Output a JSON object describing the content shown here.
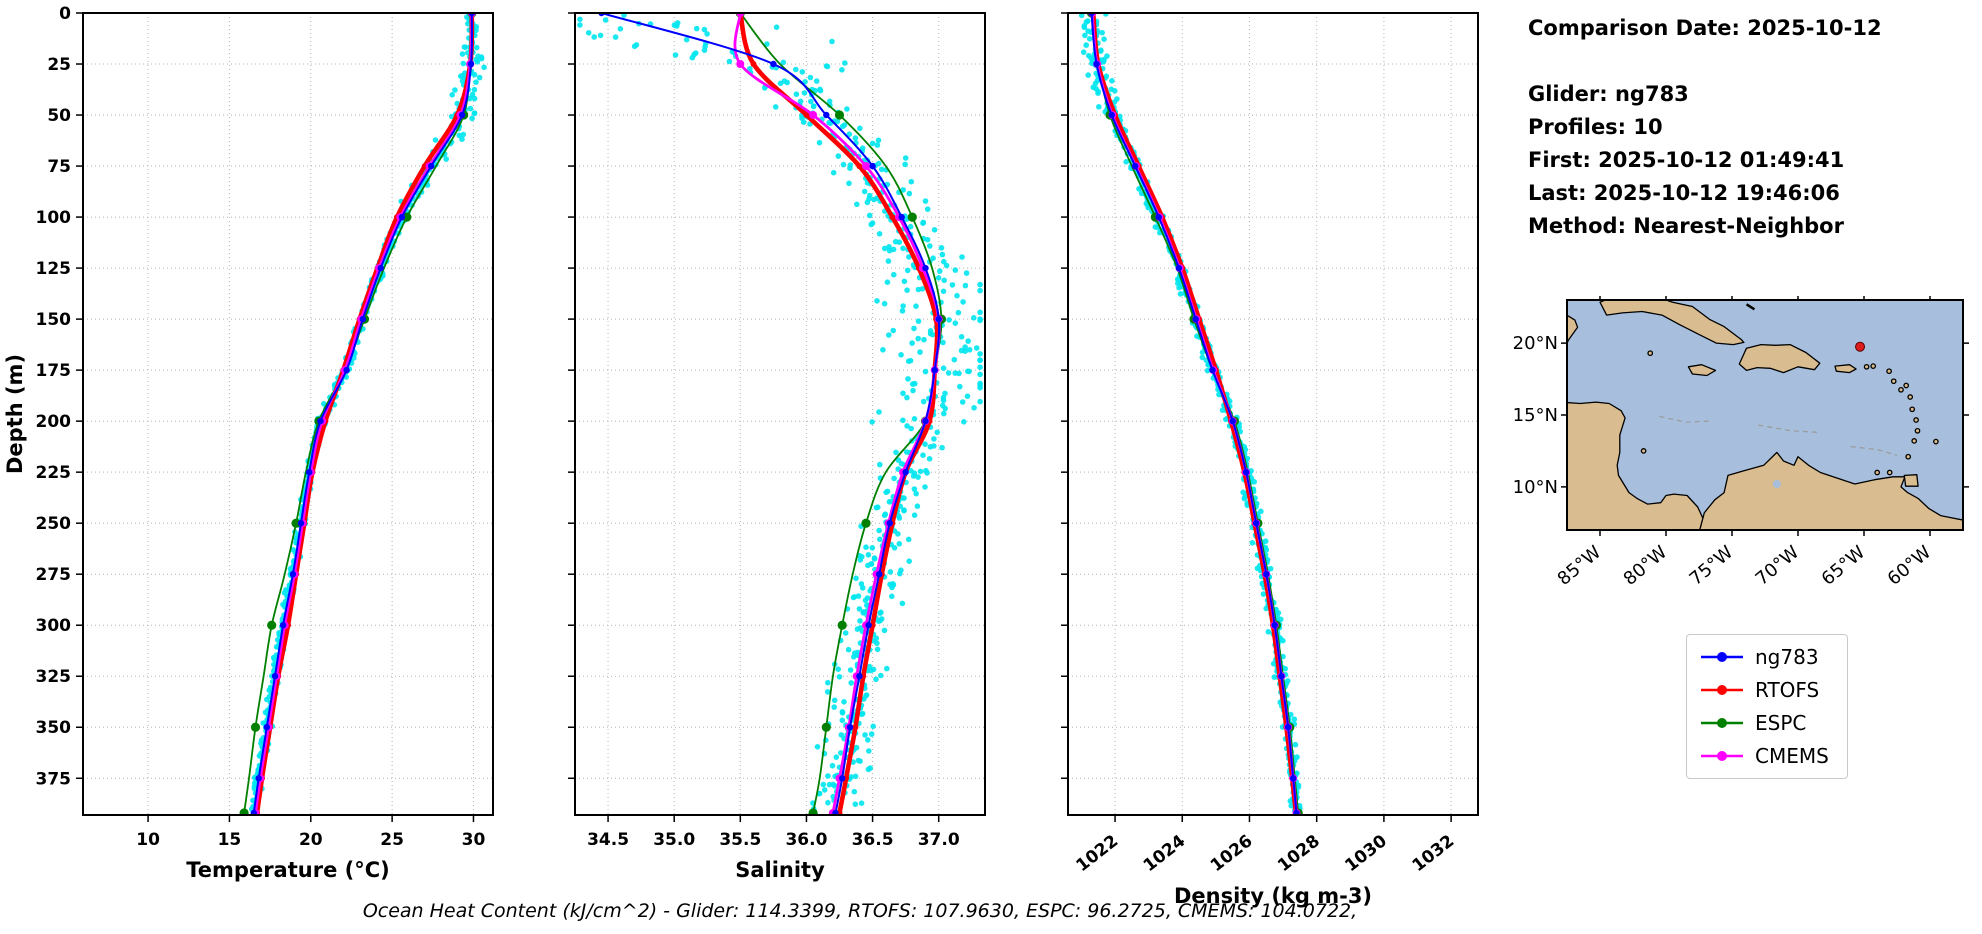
{
  "info_panel": {
    "lines": [
      "Comparison Date: 2025-10-12",
      "Glider: ng783",
      "Profiles: 10",
      "First: 2025-10-12 01:49:41",
      "Last: 2025-10-12 19:46:06",
      "Method: Nearest-Neighbor"
    ]
  },
  "footer": {
    "text": "Ocean Heat Content (kJ/cm^2) - Glider: 114.3399,  RTOFS: 107.9630,  ESPC: 96.2725,  CMEMS: 104.0722,"
  },
  "legend": {
    "entries": [
      {
        "label": "ng783",
        "color": "#0000ff"
      },
      {
        "label": "RTOFS",
        "color": "#ff0000"
      },
      {
        "label": "ESPC",
        "color": "#008000"
      },
      {
        "label": "CMEMS",
        "color": "#ff00ff"
      }
    ]
  },
  "map": {
    "lat_labels": [
      "20°N",
      "15°N",
      "10°N"
    ],
    "lat_values": [
      20,
      15,
      10
    ],
    "lon_labels": [
      "85°W",
      "80°W",
      "75°W",
      "70°W",
      "65°W",
      "60°W"
    ],
    "lon_values": [
      85,
      80,
      75,
      70,
      65,
      60
    ],
    "land_color": "#d9bc8f",
    "ocean_color": "#a7bfdc",
    "marker_color": "#dd1c1c",
    "marker_lon_w": 65.3,
    "marker_lat_n": 19.75
  },
  "chart_data": [
    {
      "type": "line",
      "xlabel": "Temperature (°C)",
      "ylabel": "Depth (m)",
      "xlim": [
        6,
        31.2
      ],
      "xticks": [
        10,
        15,
        20,
        25,
        30
      ],
      "xticklabels": [
        "10",
        "15",
        "20",
        "25",
        "30"
      ],
      "xtick_rotation": 0,
      "ylim": [
        0,
        393
      ],
      "yticks": [
        0,
        25,
        50,
        75,
        100,
        125,
        150,
        175,
        200,
        225,
        250,
        275,
        300,
        325,
        350,
        375
      ],
      "yticklabels_visible": true,
      "grid": true,
      "scatter_color": "#00e5ef",
      "depths": [
        0,
        25,
        50,
        75,
        100,
        125,
        150,
        175,
        200,
        225,
        250,
        275,
        300,
        325,
        350,
        375,
        392
      ],
      "series": [
        {
          "name": "ng783",
          "color": "#0000ff",
          "values": [
            29.9,
            29.85,
            29.3,
            27.4,
            25.6,
            24.3,
            23.2,
            22.2,
            20.6,
            19.9,
            19.4,
            18.9,
            18.3,
            17.8,
            17.3,
            16.8,
            16.5
          ]
        },
        {
          "name": "RTOFS",
          "color": "#ff0000",
          "values": [
            29.9,
            29.8,
            29.0,
            27.0,
            25.3,
            24.1,
            23.0,
            22.0,
            20.9,
            20.1,
            19.6,
            19.1,
            18.6,
            18.0,
            17.5,
            17.0,
            16.7
          ]
        },
        {
          "name": "ESPC",
          "color": "#008000",
          "values": [
            29.9,
            29.75,
            29.4,
            27.7,
            25.9,
            24.5,
            23.3,
            22.1,
            20.5,
            19.7,
            19.1,
            18.4,
            17.6,
            17.1,
            16.6,
            16.2,
            15.9
          ]
        },
        {
          "name": "CMEMS",
          "color": "#ff00ff",
          "values": [
            29.9,
            29.8,
            29.2,
            27.3,
            25.5,
            24.2,
            23.1,
            22.1,
            20.7,
            20.0,
            19.5,
            19.0,
            18.4,
            17.9,
            17.4,
            16.9,
            16.6
          ]
        }
      ]
    },
    {
      "type": "line",
      "xlabel": "Salinity",
      "ylabel": "",
      "xlim": [
        34.25,
        37.35
      ],
      "xticks": [
        34.5,
        35.0,
        35.5,
        36.0,
        36.5,
        37.0
      ],
      "xticklabels": [
        "34.5",
        "35.0",
        "35.5",
        "36.0",
        "36.5",
        "37.0"
      ],
      "xtick_rotation": 0,
      "ylim": [
        0,
        393
      ],
      "yticks": [
        0,
        25,
        50,
        75,
        100,
        125,
        150,
        175,
        200,
        225,
        250,
        275,
        300,
        325,
        350,
        375
      ],
      "yticklabels_visible": false,
      "grid": true,
      "scatter_color": "#00e5ef",
      "depths": [
        0,
        25,
        50,
        75,
        100,
        125,
        150,
        175,
        200,
        225,
        250,
        275,
        300,
        325,
        350,
        375,
        392
      ],
      "series": [
        {
          "name": "ng783",
          "color": "#0000ff",
          "values": [
            34.45,
            35.75,
            36.15,
            36.5,
            36.72,
            36.9,
            37.0,
            36.97,
            36.9,
            36.75,
            36.63,
            36.55,
            36.47,
            36.4,
            36.33,
            36.27,
            36.22
          ]
        },
        {
          "name": "RTOFS",
          "color": "#ff0000",
          "values": [
            35.5,
            35.6,
            36.0,
            36.4,
            36.65,
            36.85,
            36.98,
            36.97,
            36.93,
            36.75,
            36.65,
            36.57,
            36.5,
            36.43,
            36.37,
            36.3,
            36.25
          ]
        },
        {
          "name": "ESPC",
          "color": "#008000",
          "values": [
            35.5,
            35.8,
            36.25,
            36.6,
            36.8,
            36.95,
            37.02,
            36.97,
            36.9,
            36.6,
            36.45,
            36.35,
            36.27,
            36.2,
            36.15,
            36.1,
            36.05
          ]
        },
        {
          "name": "CMEMS",
          "color": "#ff00ff",
          "values": [
            35.5,
            35.5,
            36.05,
            36.45,
            36.7,
            36.88,
            37.0,
            36.97,
            36.9,
            36.73,
            36.62,
            36.53,
            36.45,
            36.38,
            36.32,
            36.25,
            36.2
          ]
        }
      ]
    },
    {
      "type": "line",
      "xlabel": "Density (kg m-3)",
      "ylabel": "",
      "xlim": [
        1020.6,
        1032.8
      ],
      "xticks": [
        1022,
        1024,
        1026,
        1028,
        1030,
        1032
      ],
      "xticklabels": [
        "1022",
        "1024",
        "1026",
        "1028",
        "1030",
        "1032"
      ],
      "xtick_rotation": -38,
      "ylim": [
        0,
        393
      ],
      "yticks": [
        0,
        25,
        50,
        75,
        100,
        125,
        150,
        175,
        200,
        225,
        250,
        275,
        300,
        325,
        350,
        375
      ],
      "yticklabels_visible": false,
      "grid": true,
      "scatter_color": "#00e5ef",
      "depths": [
        0,
        25,
        50,
        75,
        100,
        125,
        150,
        175,
        200,
        225,
        250,
        275,
        300,
        325,
        350,
        375,
        392
      ],
      "series": [
        {
          "name": "ng783",
          "color": "#0000ff",
          "values": [
            1021.3,
            1021.45,
            1021.9,
            1022.6,
            1023.3,
            1023.9,
            1024.4,
            1024.9,
            1025.5,
            1025.9,
            1026.2,
            1026.5,
            1026.75,
            1026.95,
            1027.15,
            1027.3,
            1027.4
          ]
        },
        {
          "name": "RTOFS",
          "color": "#ff0000",
          "values": [
            1021.35,
            1021.5,
            1022.0,
            1022.7,
            1023.4,
            1024.0,
            1024.5,
            1025.0,
            1025.45,
            1025.85,
            1026.15,
            1026.45,
            1026.7,
            1026.9,
            1027.1,
            1027.27,
            1027.38
          ]
        },
        {
          "name": "ESPC",
          "color": "#008000",
          "values": [
            1021.3,
            1021.5,
            1021.85,
            1022.5,
            1023.2,
            1023.85,
            1024.35,
            1024.9,
            1025.55,
            1025.95,
            1026.25,
            1026.55,
            1026.8,
            1027.0,
            1027.2,
            1027.35,
            1027.45
          ]
        },
        {
          "name": "CMEMS",
          "color": "#ff00ff",
          "values": [
            1021.32,
            1021.47,
            1021.92,
            1022.62,
            1023.32,
            1023.92,
            1024.42,
            1024.92,
            1025.5,
            1025.9,
            1026.2,
            1026.5,
            1026.75,
            1026.95,
            1027.15,
            1027.3,
            1027.4
          ]
        }
      ]
    }
  ]
}
